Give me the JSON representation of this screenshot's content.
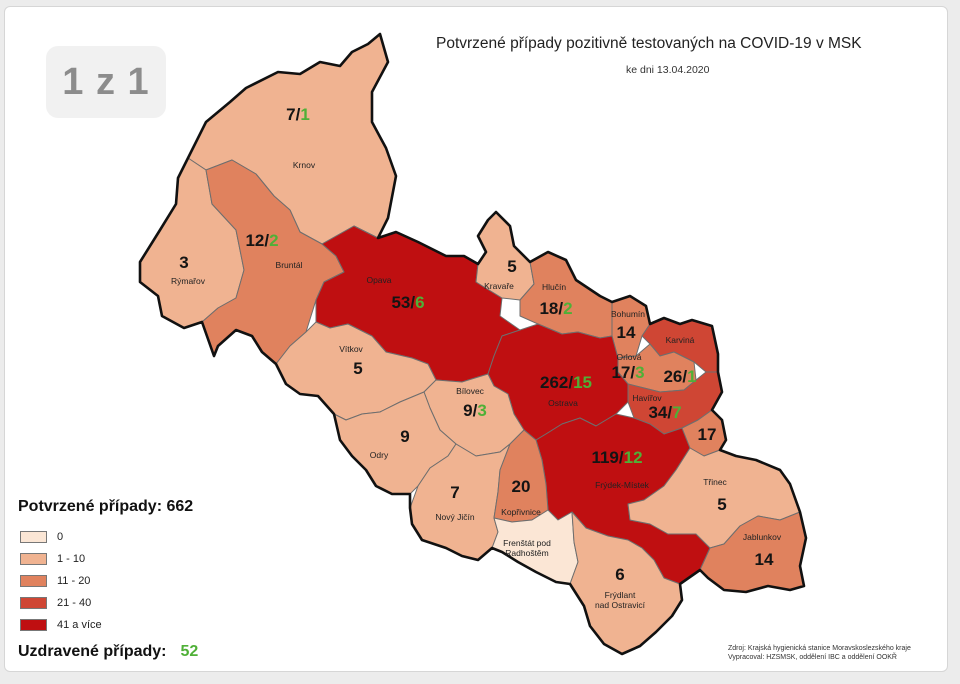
{
  "badge": "1 z 1",
  "title": "Potvrzené případy pozitivně testovaných na COVID-19 v MSK",
  "date": "ke dni 13.04.2020",
  "legend": {
    "title": "Potvrzené případy: 662",
    "items": [
      {
        "label": "0",
        "color": "#fbe6d5"
      },
      {
        "label": "1 - 10",
        "color": "#f0b391"
      },
      {
        "label": "11 - 20",
        "color": "#e0825e"
      },
      {
        "label": "21 - 40",
        "color": "#cf4634"
      },
      {
        "label": "41 a více",
        "color": "#bf0f11"
      }
    ]
  },
  "recovered": {
    "label": "Uzdravené případy:",
    "value": "52"
  },
  "source": {
    "line1": "Zdroj: Krajská hygienická stanice Moravskoslezského kraje",
    "line2": "Vypracoval: HZSMSK, oddělení IBC a oddělení OOKŘ"
  },
  "districts": [
    {
      "name": "Krnov",
      "cases": "7",
      "recovered": "1",
      "category": "1 - 10"
    },
    {
      "name": "Rýmařov",
      "cases": "3",
      "recovered": "",
      "category": "1 - 10"
    },
    {
      "name": "Bruntál",
      "cases": "12",
      "recovered": "2",
      "category": "11 - 20"
    },
    {
      "name": "Opava",
      "cases": "53",
      "recovered": "6",
      "category": "41 a více"
    },
    {
      "name": "Kravaře",
      "cases": "5",
      "recovered": "",
      "category": "1 - 10"
    },
    {
      "name": "Hlučín",
      "cases": "18",
      "recovered": "2",
      "category": "11 - 20"
    },
    {
      "name": "Bohumín",
      "cases": "14",
      "recovered": "",
      "category": "11 - 20"
    },
    {
      "name": "Karviná",
      "cases": "26",
      "recovered": "1",
      "category": "21 - 40"
    },
    {
      "name": "Orlová",
      "cases": "17",
      "recovered": "3",
      "category": "11 - 20"
    },
    {
      "name": "Vítkov",
      "cases": "5",
      "recovered": "",
      "category": "1 - 10"
    },
    {
      "name": "Bílovec",
      "cases": "9",
      "recovered": "3",
      "category": "1 - 10"
    },
    {
      "name": "Ostrava",
      "cases": "262",
      "recovered": "15",
      "category": "41 a více"
    },
    {
      "name": "Havířov",
      "cases": "34",
      "recovered": "7",
      "category": "21 - 40"
    },
    {
      "name": "Odry",
      "cases": "9",
      "recovered": "",
      "category": "1 - 10"
    },
    {
      "name": "Frýdek-Místek",
      "cases": "119",
      "recovered": "12",
      "category": "41 a více"
    },
    {
      "name": "Český Těšín",
      "cases": "17",
      "recovered": "",
      "category": "11 - 20"
    },
    {
      "name": "Nový Jičín",
      "cases": "7",
      "recovered": "",
      "category": "1 - 10"
    },
    {
      "name": "Kopřivnice",
      "cases": "20",
      "recovered": "",
      "category": "11 - 20"
    },
    {
      "name": "Třinec",
      "cases": "5",
      "recovered": "",
      "category": "1 - 10"
    },
    {
      "name": "Frenštát pod Radhoštěm",
      "cases": "0",
      "recovered": "",
      "category": "0"
    },
    {
      "name": "Frýdlant nad Ostravicí",
      "cases": "6",
      "recovered": "",
      "category": "1 - 10"
    },
    {
      "name": "Jablunkov",
      "cases": "14",
      "recovered": "",
      "category": "11 - 20"
    }
  ]
}
